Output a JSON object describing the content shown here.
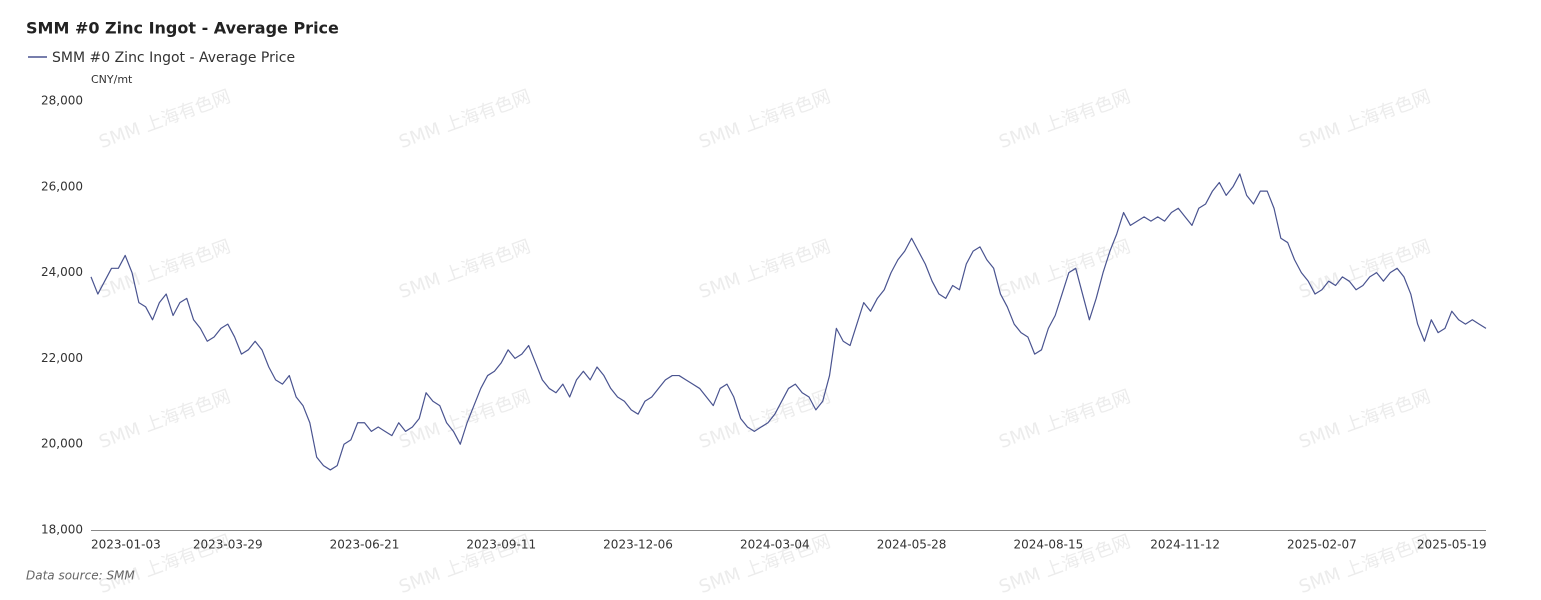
{
  "chart_data": {
    "type": "line",
    "title": "SMM #0 Zinc Ingot - Average Price",
    "unit": "CNY/mt",
    "source": "Data source:  SMM",
    "watermark": "SMM 上海有色网",
    "categories": [
      "2023-01-03",
      null,
      null,
      null,
      null,
      null,
      null,
      null,
      null,
      null,
      null,
      null,
      null,
      null,
      null,
      null,
      null,
      null,
      null,
      null,
      "2023-03-29",
      null,
      null,
      null,
      null,
      null,
      null,
      null,
      null,
      null,
      null,
      null,
      null,
      null,
      null,
      null,
      null,
      null,
      null,
      null,
      "2023-06-21",
      null,
      null,
      null,
      null,
      null,
      null,
      null,
      null,
      null,
      null,
      null,
      null,
      null,
      null,
      null,
      null,
      null,
      null,
      null,
      "2023-09-11",
      null,
      null,
      null,
      null,
      null,
      null,
      null,
      null,
      null,
      null,
      null,
      null,
      null,
      null,
      null,
      null,
      null,
      null,
      null,
      "2023-12-06",
      null,
      null,
      null,
      null,
      null,
      null,
      null,
      null,
      null,
      null,
      null,
      null,
      null,
      null,
      null,
      null,
      null,
      null,
      null,
      "2024-03-04",
      null,
      null,
      null,
      null,
      null,
      null,
      null,
      null,
      null,
      null,
      null,
      null,
      null,
      null,
      null,
      null,
      null,
      null,
      null,
      "2024-05-28",
      null,
      null,
      null,
      null,
      null,
      null,
      null,
      null,
      null,
      null,
      null,
      null,
      null,
      null,
      null,
      null,
      null,
      null,
      null,
      "2024-08-15",
      null,
      null,
      null,
      null,
      null,
      null,
      null,
      null,
      null,
      null,
      null,
      null,
      null,
      null,
      null,
      null,
      null,
      null,
      null,
      "2024-11-12",
      null,
      null,
      null,
      null,
      null,
      null,
      null,
      null,
      null,
      null,
      null,
      null,
      null,
      null,
      null,
      null,
      null,
      null,
      null,
      "2025-02-07",
      null,
      null,
      null,
      null,
      null,
      null,
      null,
      null,
      null,
      null,
      null,
      null,
      null,
      null,
      null,
      null,
      null,
      null,
      "2025-05-19",
      null,
      null,
      null,
      null,
      null
    ],
    "series": [
      {
        "name": "SMM #0 Zinc Ingot - Average Price",
        "color": "#4a5490",
        "values": [
          23900,
          23500,
          23800,
          24100,
          24100,
          24400,
          24000,
          23300,
          23200,
          22900,
          23300,
          23500,
          23000,
          23300,
          23400,
          22900,
          22700,
          22400,
          22500,
          22700,
          22800,
          22500,
          22100,
          22200,
          22400,
          22200,
          21800,
          21500,
          21400,
          21600,
          21100,
          20900,
          20500,
          19700,
          19500,
          19400,
          19500,
          20000,
          20100,
          20500,
          20500,
          20300,
          20400,
          20300,
          20200,
          20500,
          20300,
          20400,
          20600,
          21200,
          21000,
          20900,
          20500,
          20300,
          20000,
          20500,
          20900,
          21300,
          21600,
          21700,
          21900,
          22200,
          22000,
          22100,
          22300,
          21900,
          21500,
          21300,
          21200,
          21400,
          21100,
          21500,
          21700,
          21500,
          21800,
          21600,
          21300,
          21100,
          21000,
          20800,
          20700,
          21000,
          21100,
          21300,
          21500,
          21600,
          21600,
          21500,
          21400,
          21300,
          21100,
          20900,
          21300,
          21400,
          21100,
          20600,
          20400,
          20300,
          20400,
          20500,
          20700,
          21000,
          21300,
          21400,
          21200,
          21100,
          20800,
          21000,
          21600,
          22700,
          22400,
          22300,
          22800,
          23300,
          23100,
          23400,
          23600,
          24000,
          24300,
          24500,
          24800,
          24500,
          24200,
          23800,
          23500,
          23400,
          23700,
          23600,
          24200,
          24500,
          24600,
          24300,
          24100,
          23500,
          23200,
          22800,
          22600,
          22500,
          22100,
          22200,
          22700,
          23000,
          23500,
          24000,
          24100,
          23500,
          22900,
          23400,
          24000,
          24500,
          24900,
          25400,
          25100,
          25200,
          25300,
          25200,
          25300,
          25200,
          25400,
          25500,
          25300,
          25100,
          25500,
          25600,
          25900,
          26100,
          25800,
          26000,
          26300,
          25800,
          25600,
          25900,
          25900,
          25500,
          24800,
          24700,
          24300,
          24000,
          23800,
          23500,
          23600,
          23800,
          23700,
          23900,
          23800,
          23600,
          23700,
          23900,
          24000,
          23800,
          24000,
          24100,
          23900,
          23500,
          22800,
          22400,
          22900,
          22600,
          22700,
          23100,
          22900,
          22800,
          22900,
          22800,
          22700
        ]
      }
    ],
    "ylim": [
      18000,
      28000
    ],
    "yticks": [
      {
        "value": 18000,
        "label": "18,000"
      },
      {
        "value": 20000,
        "label": "20,000"
      },
      {
        "value": 22000,
        "label": "22,000"
      },
      {
        "value": 24000,
        "label": "24,000"
      },
      {
        "value": 26000,
        "label": "26,000"
      },
      {
        "value": 28000,
        "label": "28,000"
      }
    ],
    "grid": false
  }
}
